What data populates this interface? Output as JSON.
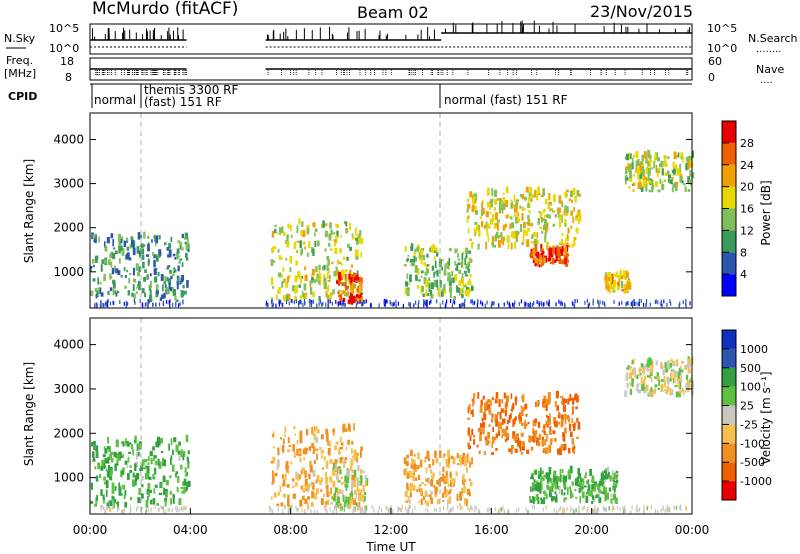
{
  "header": {
    "station": "McMurdo (fitACF)",
    "beam": "Beam 02",
    "date": "23/Nov/2015"
  },
  "top_panel": {
    "left_label_top": "N.Sky",
    "left_ticks": [
      "10^5",
      "10^0"
    ],
    "right_ticks": [
      "10^5",
      "10^0"
    ],
    "right_label": "N.Search",
    "right_label_dots": "........"
  },
  "freq_panel": {
    "left_label_1": "Freq.",
    "left_label_2": "[MHz]",
    "left_ticks": [
      "18",
      "8"
    ],
    "right_ticks": [
      "60",
      "0"
    ],
    "right_label": "Nave",
    "right_label_dots": "...."
  },
  "cpid": {
    "label": "CPID",
    "segments": [
      {
        "line1": "normal",
        "line2": ""
      },
      {
        "line1": "themis 3300 RF",
        "line2": "(fast) 151 RF"
      },
      {
        "line1": "normal (fast) 151 RF",
        "line2": ""
      }
    ]
  },
  "power_panel": {
    "ylabel": "Slant Range [km]",
    "yticks": [
      "4000",
      "3000",
      "2000",
      "1000"
    ],
    "colorbar_label": "Power [dB]",
    "colorbar_ticks": [
      "28",
      "24",
      "20",
      "16",
      "12",
      "8",
      "4"
    ]
  },
  "velocity_panel": {
    "ylabel": "Slant Range [km]",
    "yticks": [
      "4000",
      "3000",
      "2000",
      "1000"
    ],
    "colorbar_label": "Velocity [m s⁻¹]",
    "colorbar_ticks": [
      "1000",
      "500",
      "100",
      "25",
      "-25",
      "-100",
      "-500",
      "-1000"
    ]
  },
  "xaxis": {
    "label": "Time UT",
    "ticks": [
      "00:00",
      "04:00",
      "08:00",
      "12:00",
      "16:00",
      "20:00",
      "00:00"
    ]
  },
  "colors": {
    "power_scale": [
      "#0000ff",
      "#2a55b0",
      "#3b9b5a",
      "#7fc05a",
      "#e8d800",
      "#f0a000",
      "#f06000",
      "#e80000"
    ],
    "velocity_scale": [
      "#e80000",
      "#f06000",
      "#f09020",
      "#f5c050",
      "#c8c8c0",
      "#60c040",
      "#30a040",
      "#2a55b0",
      "#1030c0"
    ],
    "dashed_line": "#b0b0b0"
  },
  "chart_data": [
    {
      "type": "heatmap",
      "title": "Power",
      "xlabel": "Time UT",
      "ylabel": "Slant Range [km]",
      "xlim": [
        "00:00",
        "24:00"
      ],
      "ylim": [
        180,
        4600
      ],
      "color_scale_label": "Power [dB]",
      "color_scale_range": [
        0,
        30
      ],
      "data_gaps_UT_hours": [
        [
          3.85,
          7.0
        ]
      ],
      "echo_regions": [
        {
          "t0": 0.0,
          "t1": 3.9,
          "r0": 300,
          "r1": 1800,
          "power_dB": 10
        },
        {
          "t0": 7.2,
          "t1": 10.8,
          "r0": 300,
          "r1": 2100,
          "power_dB": 16
        },
        {
          "t0": 9.8,
          "t1": 10.8,
          "r0": 250,
          "r1": 900,
          "power_dB": 26
        },
        {
          "t0": 12.5,
          "t1": 15.2,
          "r0": 350,
          "r1": 1500,
          "power_dB": 14
        },
        {
          "t0": 15.0,
          "t1": 19.5,
          "r0": 1500,
          "r1": 2800,
          "power_dB": 18
        },
        {
          "t0": 17.5,
          "t1": 19.0,
          "r0": 1100,
          "r1": 1500,
          "power_dB": 28
        },
        {
          "t0": 20.5,
          "t1": 21.5,
          "r0": 500,
          "r1": 900,
          "power_dB": 20
        },
        {
          "t0": 21.3,
          "t1": 24.0,
          "r0": 2800,
          "r1": 3600,
          "power_dB": 16
        }
      ]
    },
    {
      "type": "heatmap",
      "title": "Velocity",
      "xlabel": "Time UT",
      "ylabel": "Slant Range [km]",
      "xlim": [
        "00:00",
        "24:00"
      ],
      "ylim": [
        180,
        4600
      ],
      "color_scale_label": "Velocity [m s^-1]",
      "color_scale_range": [
        -1000,
        1000
      ],
      "data_gaps_UT_hours": [
        [
          3.85,
          7.0
        ]
      ],
      "echo_regions": [
        {
          "t0": 0.0,
          "t1": 3.9,
          "r0": 300,
          "r1": 1800,
          "velocity": 100
        },
        {
          "t0": 7.2,
          "t1": 10.8,
          "r0": 300,
          "r1": 2100,
          "velocity": -100
        },
        {
          "t0": 9.5,
          "t1": 11.0,
          "r0": 250,
          "r1": 1200,
          "velocity": 0
        },
        {
          "t0": 12.5,
          "t1": 15.2,
          "r0": 350,
          "r1": 1500,
          "velocity": -100
        },
        {
          "t0": 15.0,
          "t1": 19.5,
          "r0": 1500,
          "r1": 2800,
          "velocity": -500
        },
        {
          "t0": 17.5,
          "t1": 21.0,
          "r0": 400,
          "r1": 1100,
          "velocity": 100
        },
        {
          "t0": 21.3,
          "t1": 24.0,
          "r0": 2800,
          "r1": 3600,
          "velocity": 0
        }
      ]
    }
  ]
}
